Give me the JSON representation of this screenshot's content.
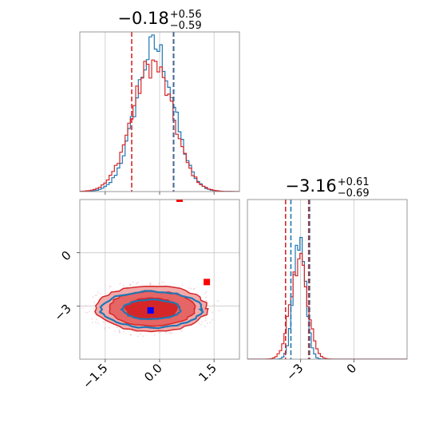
{
  "chart_data": {
    "type": "corner",
    "params": [
      {
        "title": {
          "median": "−0.18",
          "plus": "+0.56",
          "minus": "−0.59"
        },
        "range": [
          -2.2,
          2.2
        ],
        "ticks": [
          -1.5,
          0.0,
          1.5
        ],
        "tick_labels": [
          "−1.5",
          "0.0",
          "1.5"
        ],
        "quantiles": [
          -0.77,
          0.38
        ],
        "truth": 0.39
      },
      {
        "title": {
          "median": "−3.16",
          "plus": "+0.61",
          "minus": "−0.69"
        },
        "range": [
          -6,
          3
        ],
        "ticks": [
          -3,
          0
        ],
        "tick_labels": [
          "−3",
          "0"
        ],
        "quantiles": [
          -3.85,
          -2.55
        ],
        "truth": -2.5
      }
    ],
    "series": [
      {
        "color": "#1f77b4",
        "hist_x": {
          "mean": -0.14,
          "sd": 0.52,
          "peak_frac": 0.91
        },
        "hist_y": {
          "mean": -3.05,
          "sd": 0.33,
          "peak_frac": 0.78
        },
        "quantiles_y": [
          -3.55,
          -2.5
        ],
        "marker": [
          -0.25,
          -3.25
        ]
      },
      {
        "color": "#d62728",
        "hist_x": {
          "mean": -0.2,
          "sd": 0.56,
          "peak_frac": 0.8
        },
        "hist_y": {
          "mean": -3.1,
          "sd": 0.48,
          "peak_frac": 0.62
        },
        "marker": [
          1.3,
          -1.65
        ],
        "marker_top": [
          0.55,
          3.0
        ]
      }
    ],
    "contours_2d": {
      "center": [
        -0.22,
        -3.15
      ],
      "fill_rx": [
        1.52,
        1.18,
        0.72
      ],
      "fill_ry": [
        1.28,
        0.98,
        0.6
      ],
      "blue_rx": [
        1.38,
        0.8
      ],
      "blue_ry": [
        1.02,
        0.55
      ],
      "fill_colors": [
        "#f2a9a9",
        "#e66565",
        "#d62728"
      ]
    }
  }
}
